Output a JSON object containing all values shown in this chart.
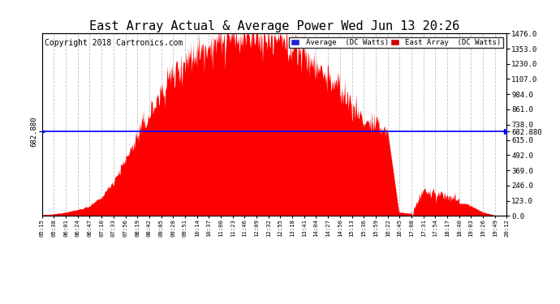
{
  "title": "East Array Actual & Average Power Wed Jun 13 20:26",
  "copyright": "Copyright 2018 Cartronics.com",
  "legend_avg_label": "Average  (DC Watts)",
  "legend_east_label": "East Array  (DC Watts)",
  "avg_value": 682.88,
  "left_y_label": "682.880",
  "y_max": 1476.0,
  "y_min": 0.0,
  "y_ticks": [
    0.0,
    123.0,
    246.0,
    369.0,
    492.0,
    615.0,
    738.0,
    861.0,
    984.0,
    1107.0,
    1230.0,
    1353.0,
    1476.0
  ],
  "x_labels": [
    "05:15",
    "05:38",
    "06:01",
    "06:24",
    "06:47",
    "07:10",
    "07:33",
    "07:56",
    "08:19",
    "08:42",
    "09:05",
    "09:28",
    "09:51",
    "10:14",
    "10:37",
    "11:00",
    "11:23",
    "11:46",
    "12:09",
    "12:32",
    "12:55",
    "13:18",
    "13:41",
    "14:04",
    "14:27",
    "14:50",
    "15:13",
    "15:36",
    "15:59",
    "16:22",
    "16:45",
    "17:08",
    "17:31",
    "17:54",
    "18:17",
    "18:40",
    "19:03",
    "19:26",
    "19:49",
    "20:12"
  ],
  "background_color": "#ffffff",
  "fill_color": "#ff0000",
  "line_color": "#0000ff",
  "title_fontsize": 11,
  "copyright_fontsize": 7,
  "grid_color": "#bbbbbb",
  "legend_avg_color": "#2222cc",
  "legend_east_color": "#cc0000"
}
